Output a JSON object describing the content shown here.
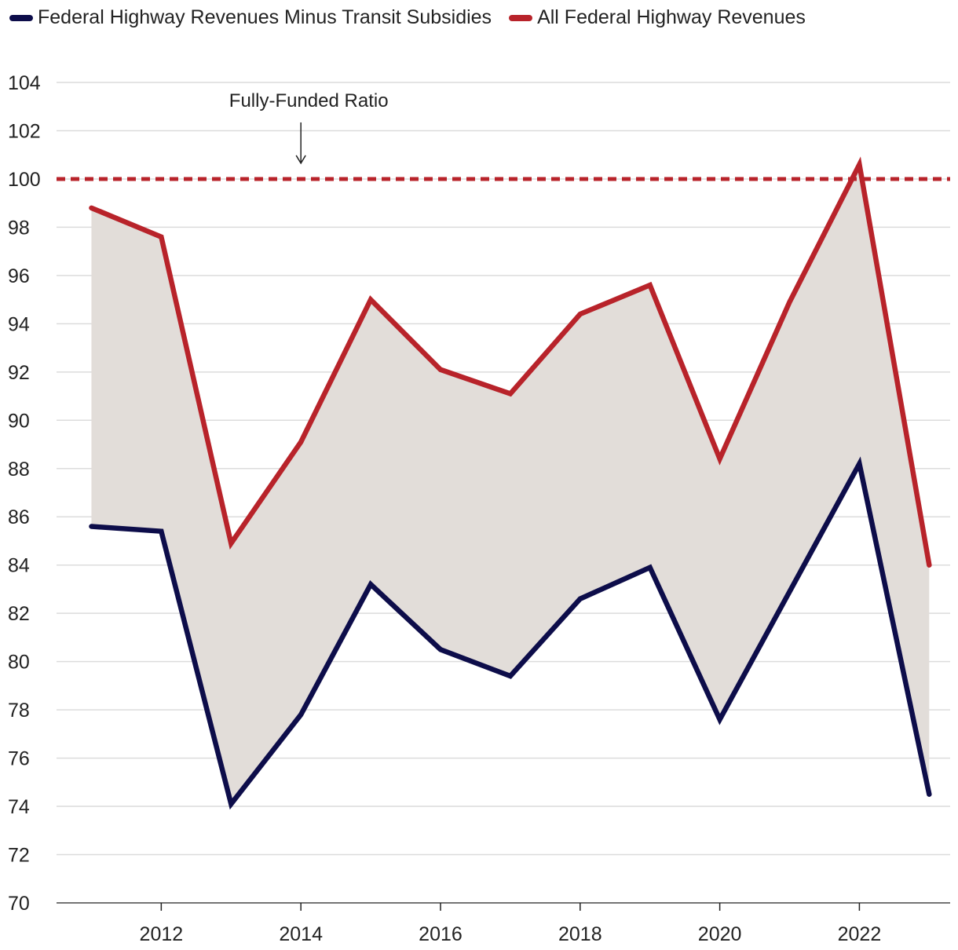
{
  "legend": {
    "items": [
      {
        "label": "Federal Highway Revenues Minus Transit Subsidies",
        "color": "#0d0d4a"
      },
      {
        "label": "All Federal Highway Revenues",
        "color": "#b8232a"
      }
    ]
  },
  "chart_data": {
    "type": "line",
    "x": [
      2011,
      2012,
      2013,
      2014,
      2015,
      2016,
      2017,
      2018,
      2019,
      2020,
      2021,
      2022,
      2023
    ],
    "series": [
      {
        "name": "Federal Highway Revenues Minus Transit Subsidies",
        "color": "#0d0d4a",
        "values": [
          85.6,
          85.4,
          74.1,
          77.8,
          83.2,
          80.5,
          79.4,
          82.6,
          83.9,
          77.6,
          82.9,
          88.2,
          74.5
        ]
      },
      {
        "name": "All Federal Highway Revenues",
        "color": "#b8232a",
        "values": [
          98.8,
          97.6,
          84.9,
          89.1,
          95.0,
          92.1,
          91.1,
          94.4,
          95.6,
          88.4,
          94.9,
          100.6,
          84.0
        ]
      }
    ],
    "fill_between": {
      "color": "#e2ddd9"
    },
    "reference_line": {
      "value": 100,
      "color": "#b8232a",
      "style": "dashed",
      "annotation": "Fully-Funded Ratio",
      "annotation_x": 2014
    },
    "ylim": [
      70,
      104
    ],
    "yticks": [
      70,
      72,
      74,
      76,
      78,
      80,
      82,
      84,
      86,
      88,
      90,
      92,
      94,
      96,
      98,
      100,
      102,
      104
    ],
    "xlim": [
      2010.5,
      2023.3
    ],
    "xticks": [
      2012,
      2014,
      2016,
      2018,
      2020,
      2022
    ],
    "grid": true,
    "legend_position": "top-left",
    "title": "",
    "xlabel": "",
    "ylabel": ""
  }
}
